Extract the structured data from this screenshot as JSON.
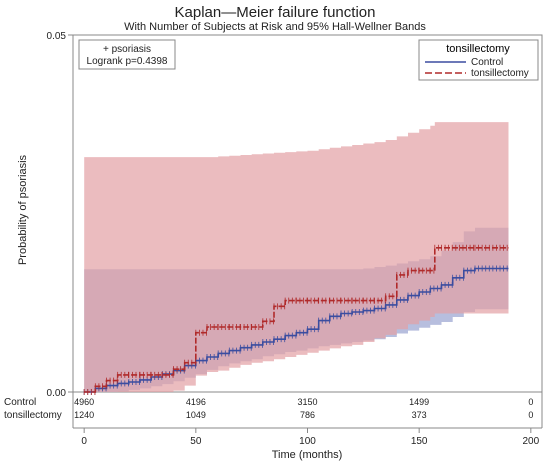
{
  "chart_data": {
    "type": "line",
    "title": "Kaplan—Meier failure function",
    "subtitle": "With Number of Subjects at Risk and 95% Hall-Wellner Bands",
    "xlabel": "Time (months)",
    "ylabel": "Probability of psoriasis",
    "xlim": [
      -5,
      205
    ],
    "ylim": [
      0,
      0.05
    ],
    "xticks": [
      "0",
      "50",
      "100",
      "150",
      "200"
    ],
    "xtick_values": [
      0,
      50,
      100,
      150,
      200
    ],
    "yticks": [
      "0.00",
      "0.05"
    ],
    "ytick_values": [
      0,
      0.05
    ],
    "annotation": {
      "lines": [
        "+ psoriasis",
        "Logrank p=0.4398"
      ]
    },
    "legend": {
      "title": "tonsillectomy",
      "placement": "top-right",
      "entries": [
        "Control",
        "tonsillectomy"
      ]
    },
    "colors": {
      "control": "#3b4da0",
      "control_band": "#aab3d8",
      "tonsillectomy": "#b02a2a",
      "tonsillectomy_band": "#e3a0a4"
    },
    "series": [
      {
        "name": "Control",
        "x": [
          0,
          5,
          10,
          15,
          20,
          25,
          30,
          35,
          40,
          45,
          50,
          55,
          60,
          65,
          70,
          75,
          80,
          85,
          90,
          95,
          100,
          105,
          110,
          115,
          120,
          125,
          130,
          135,
          140,
          145,
          150,
          155,
          160,
          165,
          170,
          175,
          190
        ],
        "y": [
          0,
          0.0005,
          0.0009,
          0.0012,
          0.0014,
          0.0017,
          0.0021,
          0.0025,
          0.003,
          0.0037,
          0.0044,
          0.0049,
          0.0054,
          0.0058,
          0.0062,
          0.0066,
          0.007,
          0.0074,
          0.0079,
          0.0083,
          0.0088,
          0.01,
          0.0106,
          0.011,
          0.0112,
          0.0114,
          0.0117,
          0.0122,
          0.0129,
          0.0135,
          0.014,
          0.0145,
          0.015,
          0.016,
          0.017,
          0.0173,
          0.0173
        ],
        "band_lower": [
          0,
          0,
          0,
          0.0001,
          0.0003,
          0.0005,
          0.0008,
          0.0011,
          0.0015,
          0.002,
          0.0025,
          0.0031,
          0.0036,
          0.004,
          0.0043,
          0.0046,
          0.005,
          0.0053,
          0.0056,
          0.0058,
          0.0061,
          0.0064,
          0.0066,
          0.0068,
          0.007,
          0.0072,
          0.0074,
          0.0077,
          0.0082,
          0.0086,
          0.009,
          0.0094,
          0.0098,
          0.0105,
          0.0112,
          0.0116,
          0.0116
        ],
        "band_upper": [
          0.0172,
          0.0172,
          0.0172,
          0.0172,
          0.0172,
          0.0172,
          0.0172,
          0.0172,
          0.0172,
          0.0172,
          0.0172,
          0.0172,
          0.0172,
          0.0172,
          0.0172,
          0.0172,
          0.0172,
          0.0172,
          0.0172,
          0.0172,
          0.0172,
          0.0172,
          0.0172,
          0.0172,
          0.0172,
          0.0173,
          0.0175,
          0.0177,
          0.018,
          0.0183,
          0.0186,
          0.019,
          0.0198,
          0.021,
          0.0225,
          0.023,
          0.023
        ]
      },
      {
        "name": "tonsillectomy",
        "x": [
          0,
          5,
          10,
          15,
          20,
          25,
          30,
          35,
          40,
          45,
          50,
          55,
          60,
          65,
          70,
          75,
          80,
          85,
          90,
          95,
          100,
          105,
          110,
          115,
          120,
          125,
          130,
          135,
          140,
          145,
          150,
          155,
          157,
          160,
          175,
          190
        ],
        "y": [
          0,
          0.0008,
          0.0016,
          0.0024,
          0.0024,
          0.0024,
          0.0024,
          0.0024,
          0.0032,
          0.0041,
          0.0083,
          0.0091,
          0.0091,
          0.0091,
          0.0091,
          0.0091,
          0.0099,
          0.012,
          0.0128,
          0.0128,
          0.0128,
          0.0128,
          0.0128,
          0.0128,
          0.0128,
          0.0128,
          0.0128,
          0.0134,
          0.0164,
          0.017,
          0.017,
          0.017,
          0.0202,
          0.0202,
          0.0202,
          0.0202
        ],
        "band_lower": [
          0,
          0,
          0,
          0,
          0,
          0,
          0,
          0,
          0.0002,
          0.0009,
          0.0023,
          0.0028,
          0.003,
          0.0034,
          0.0038,
          0.0041,
          0.0043,
          0.0046,
          0.0049,
          0.0052,
          0.0055,
          0.0058,
          0.0061,
          0.0064,
          0.0066,
          0.007,
          0.0075,
          0.008,
          0.0088,
          0.0095,
          0.01,
          0.0105,
          0.011,
          0.011,
          0.011,
          0.011
        ],
        "band_upper": [
          0.0329,
          0.0329,
          0.0329,
          0.0329,
          0.0329,
          0.0329,
          0.0329,
          0.0329,
          0.0329,
          0.0329,
          0.0329,
          0.0329,
          0.033,
          0.0331,
          0.0332,
          0.0333,
          0.0334,
          0.0335,
          0.0336,
          0.0337,
          0.0338,
          0.034,
          0.0342,
          0.0344,
          0.0346,
          0.0348,
          0.035,
          0.0353,
          0.0358,
          0.0363,
          0.0368,
          0.0373,
          0.0378,
          0.0378,
          0.0378,
          0.0378
        ]
      }
    ],
    "at_risk": {
      "times": [
        0,
        50,
        100,
        150,
        200
      ],
      "rows": [
        {
          "label": "Control",
          "counts": [
            "4960",
            "4196",
            "3150",
            "1499",
            "0"
          ]
        },
        {
          "label": "tonsillectomy",
          "counts": [
            "1240",
            "1049",
            "786",
            "373",
            "0"
          ]
        }
      ]
    }
  }
}
